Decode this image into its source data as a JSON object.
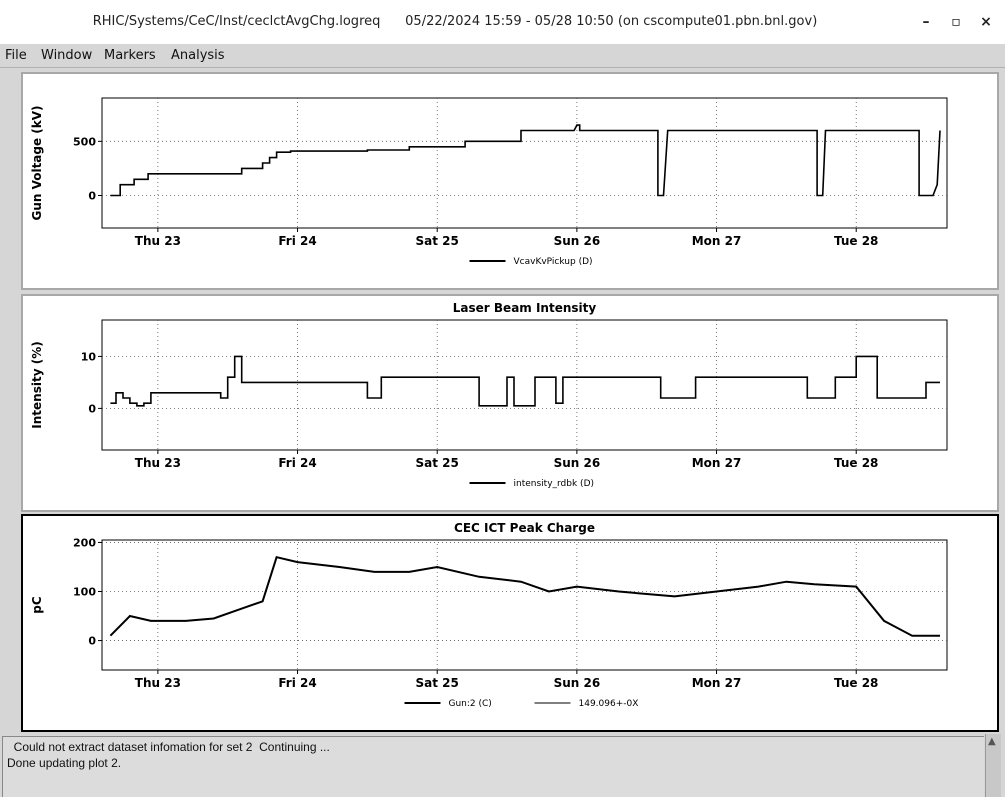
{
  "window": {
    "title": "RHIC/Systems/CeC/Inst/ceclctAvgChg.logreq      05/22/2024 15:59 - 05/28 10:50 (on cscompute01.pbn.bnl.gov)",
    "minimize": "–",
    "maximize": "▫",
    "close": "×"
  },
  "menu": {
    "items": [
      "File",
      "Window",
      "Markers",
      "Analysis"
    ]
  },
  "xaxis": {
    "ticks": [
      "Thu 23",
      "Fri 24",
      "Sat 25",
      "Sun 26",
      "Mon 27",
      "Tue 28"
    ]
  },
  "plots": [
    {
      "title": "",
      "ylabel": "Gun Voltage (kV)",
      "yticks": [
        "500",
        "0"
      ],
      "legend": [
        "VcavKvPickup (D)"
      ],
      "chart_data": {
        "type": "line",
        "ylim": [
          -300,
          900
        ],
        "x_unit": "days since Wed 22 00:00",
        "grid": true,
        "series": [
          {
            "name": "VcavKvPickup (D)",
            "x": [
              0.66,
              0.73,
              0.73,
              0.83,
              0.83,
              0.93,
              0.93,
              1.6,
              1.6,
              1.75,
              1.75,
              1.8,
              1.8,
              1.85,
              1.85,
              1.95,
              1.95,
              2.5,
              2.5,
              2.8,
              2.8,
              3.2,
              3.2,
              3.6,
              3.6,
              3.98,
              4.0,
              4.02,
              4.02,
              4.1,
              4.1,
              4.58,
              4.58,
              4.62,
              4.65,
              4.65,
              4.9,
              5.1,
              5.1,
              5.72,
              5.72,
              5.76,
              5.78,
              5.78,
              6.0,
              6.0,
              6.1,
              6.1,
              6.45,
              6.45,
              6.55,
              6.58,
              6.6,
              6.6
            ],
            "y": [
              0,
              0,
              100,
              100,
              150,
              150,
              200,
              200,
              250,
              250,
              300,
              300,
              350,
              350,
              400,
              400,
              410,
              410,
              420,
              420,
              450,
              450,
              500,
              500,
              600,
              600,
              650,
              650,
              600,
              600,
              600,
              600,
              0,
              0,
              600,
              600,
              600,
              600,
              600,
              600,
              0,
              0,
              600,
              600,
              600,
              600,
              600,
              600,
              600,
              0,
              0,
              100,
              600,
              600
            ]
          }
        ]
      }
    },
    {
      "title": "Laser Beam Intensity",
      "ylabel": "Intensity (%)",
      "yticks": [
        "10",
        "0"
      ],
      "legend": [
        "intensity_rdbk (D)"
      ],
      "chart_data": {
        "type": "line",
        "ylim": [
          -8,
          17
        ],
        "x_unit": "days since Wed 22 00:00",
        "grid": true,
        "series": [
          {
            "name": "intensity_rdbk (D)",
            "x": [
              0.66,
              0.7,
              0.7,
              0.75,
              0.75,
              0.8,
              0.8,
              0.85,
              0.85,
              0.9,
              0.9,
              0.95,
              0.95,
              1.45,
              1.45,
              1.5,
              1.5,
              1.55,
              1.55,
              1.6,
              1.6,
              1.85,
              1.85,
              2.5,
              2.5,
              2.6,
              2.6,
              2.8,
              2.8,
              3.3,
              3.3,
              3.5,
              3.5,
              3.55,
              3.55,
              3.7,
              3.7,
              3.85,
              3.85,
              3.9,
              3.9,
              4.5,
              4.5,
              4.6,
              4.6,
              4.85,
              4.85,
              5.5,
              5.5,
              5.65,
              5.65,
              5.85,
              5.85,
              6.0,
              6.0,
              6.15,
              6.15,
              6.5,
              6.5,
              6.6
            ],
            "y": [
              1,
              1,
              3,
              3,
              2,
              2,
              1,
              1,
              0.5,
              0.5,
              1,
              1,
              3,
              3,
              2,
              2,
              6,
              6,
              10,
              10,
              5,
              5,
              5,
              5,
              2,
              2,
              6,
              6,
              6,
              6,
              0.5,
              0.5,
              6,
              6,
              0.5,
              0.5,
              6,
              6,
              1,
              1,
              6,
              6,
              6,
              6,
              2,
              2,
              6,
              6,
              6,
              6,
              2,
              2,
              6,
              6,
              10,
              10,
              2,
              2,
              5,
              5
            ]
          }
        ]
      }
    },
    {
      "title": "CEC ICT Peak Charge",
      "ylabel": "pC",
      "yticks": [
        "200",
        "100",
        "0"
      ],
      "legend": [
        "Gun:2 (C)",
        "149.096+-0X"
      ],
      "chart_data": {
        "type": "line",
        "ylim": [
          -60,
          205
        ],
        "x_unit": "days since Wed 22 00:00",
        "grid": true,
        "series": [
          {
            "name": "Gun:2 (C)",
            "x": [
              0.66,
              0.8,
              0.95,
              1.2,
              1.4,
              1.55,
              1.75,
              1.85,
              2.0,
              2.3,
              2.55,
              2.8,
              3.0,
              3.3,
              3.6,
              3.8,
              4.0,
              4.3,
              4.5,
              4.7,
              5.0,
              5.3,
              5.5,
              5.7,
              6.0,
              6.2,
              6.4,
              6.6
            ],
            "y": [
              10,
              50,
              40,
              40,
              45,
              60,
              80,
              170,
              160,
              150,
              140,
              140,
              150,
              130,
              120,
              100,
              110,
              100,
              95,
              90,
              100,
              110,
              120,
              115,
              110,
              40,
              10,
              10
            ]
          }
        ]
      }
    }
  ],
  "status": {
    "lines": [
      "  Could not extract dataset infomation for set 2  Continuing ...",
      "Done updating plot 2."
    ]
  }
}
